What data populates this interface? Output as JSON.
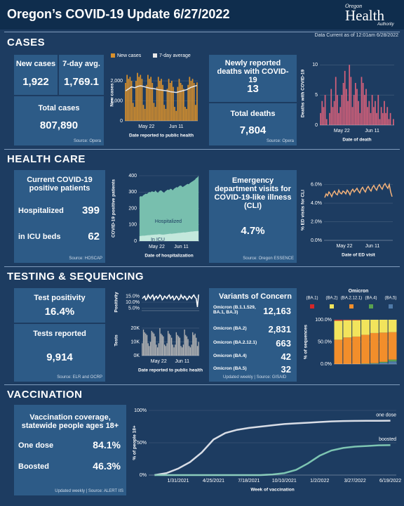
{
  "header": {
    "title": "Oregon’s COVID-19 Update 6/27/2022",
    "logo": [
      "Oregon",
      "Health",
      "Authority"
    ],
    "data_current": "Data Current as of 12:01am 6/28/2022"
  },
  "cases": {
    "title": "CASES",
    "new_cases": {
      "label": "New cases",
      "value": "1,922"
    },
    "avg": {
      "label": "7-day avg.",
      "value": "1,769.1"
    },
    "total": {
      "label": "Total cases",
      "value": "807,890"
    },
    "source": "Source: Opera",
    "deaths_new": {
      "label": "Newly reported deaths with COVID-19",
      "value": "13"
    },
    "deaths_total": {
      "label": "Total deaths",
      "value": "7,804"
    },
    "deaths_source": "Source: Opera"
  },
  "health_care": {
    "title": "HEALTH CARE",
    "patients_label": "Current COVID-19 positive patients",
    "hospitalized": {
      "label": "Hospitalized",
      "value": "399"
    },
    "icu": {
      "label": "in ICU beds",
      "value": "62"
    },
    "source": "Source: HOSCAP",
    "ed_label": "Emergency department visits for COVID-19-like illness (CLI)",
    "ed_value": "4.7%",
    "ed_source": "Source: Oregon ESSENCE"
  },
  "testing": {
    "title": "TESTING & SEQUENCING",
    "positivity": {
      "label": "Test positivity",
      "value": "16.4%"
    },
    "tests": {
      "label": "Tests reported",
      "value": "9,914"
    },
    "source": "Source: ELR and OCRP",
    "variants_title": "Variants of Concern",
    "variants": [
      [
        "Omicron (B.1.1.529, BA.1, BA.3)",
        "12,163"
      ],
      [
        "Omicron (BA.2)",
        "2,831"
      ],
      [
        "Omicron (BA.2.12.1)",
        "663"
      ],
      [
        "Omicron (BA.4)",
        "42"
      ],
      [
        "Omicron (BA.5)",
        "32"
      ]
    ],
    "variants_source": "Updated weekly | Source: GISAID"
  },
  "vaccination": {
    "title": "VACCINATION",
    "label": "Vaccination coverage, statewide people ages 18+",
    "one_dose": {
      "label": "One dose",
      "value": "84.1%"
    },
    "boosted": {
      "label": "Boosted",
      "value": "46.3%"
    },
    "source": "Updated weekly | Source: ALERT IIS"
  },
  "chart_data": [
    {
      "type": "bar",
      "ylabel": "New cases",
      "xlabel": "Date reported to public health",
      "legend": "top",
      "grid": true,
      "categories": [
        null,
        null,
        null,
        null,
        null,
        null,
        null,
        null,
        null,
        null,
        null,
        null,
        null,
        null,
        "May 22",
        null,
        null,
        null,
        null,
        null,
        null,
        null,
        null,
        null,
        null,
        null,
        null,
        null,
        null,
        null,
        null,
        null,
        null,
        null,
        "Jun 11",
        null,
        null,
        null,
        null,
        null,
        null,
        null,
        null,
        null,
        null,
        null,
        null,
        null,
        null
      ],
      "ylim": [
        0,
        2600
      ],
      "yticks": [
        0,
        {
          "value": 1000,
          "label": "1,000"
        },
        {
          "value": 2000,
          "label": "2,000"
        }
      ],
      "series": [
        {
          "name": "New cases",
          "color": "#d9902b",
          "values": [
            1900,
            2300,
            2100,
            2200,
            2000,
            900,
            700,
            2000,
            2400,
            2200,
            2300,
            2100,
            800,
            600,
            1800,
            2300,
            2100,
            2200,
            1900,
            900,
            700,
            1700,
            2200,
            2000,
            2100,
            1800,
            800,
            600,
            1600,
            2100,
            1900,
            2000,
            1700,
            700,
            500,
            1700,
            2100,
            1900,
            1800,
            1600,
            700,
            600,
            1800,
            2200,
            2000,
            2100,
            1900,
            800,
            1922
          ]
        },
        {
          "name": "7-day average",
          "type": "line",
          "color": "#e8e8e8",
          "values": [
            1500,
            1550,
            1600,
            1650,
            1700,
            1680,
            1660,
            1680,
            1720,
            1740,
            1750,
            1740,
            1720,
            1700,
            1680,
            1660,
            1640,
            1630,
            1620,
            1610,
            1600,
            1580,
            1560,
            1550,
            1540,
            1530,
            1520,
            1510,
            1500,
            1480,
            1460,
            1450,
            1440,
            1430,
            1420,
            1440,
            1460,
            1480,
            1500,
            1520,
            1540,
            1560,
            1600,
            1640,
            1680,
            1700,
            1730,
            1750,
            1769.1
          ]
        }
      ]
    },
    {
      "type": "bar",
      "ylabel": "Deaths with COVID-19",
      "xlabel": "Date of death",
      "grid": true,
      "categories": [
        null,
        null,
        null,
        null,
        null,
        null,
        null,
        null,
        null,
        null,
        null,
        null,
        null,
        null,
        "May 22",
        null,
        null,
        null,
        null,
        null,
        null,
        null,
        null,
        null,
        null,
        null,
        null,
        null,
        null,
        null,
        null,
        null,
        null,
        null,
        "Jun 11",
        null,
        null,
        null,
        null,
        null,
        null,
        null,
        null,
        null,
        null,
        null,
        null,
        null,
        null
      ],
      "ylim": [
        0,
        10.5
      ],
      "yticks": [
        0,
        5,
        10
      ],
      "series": [
        {
          "name": "Deaths",
          "color": "#d4607a",
          "values": [
            2,
            4,
            3,
            5,
            1,
            0,
            2,
            6,
            3,
            4,
            8,
            5,
            2,
            3,
            5,
            7,
            9,
            6,
            4,
            10,
            8,
            3,
            5,
            7,
            6,
            4,
            2,
            8,
            7,
            5,
            6,
            3,
            4,
            2,
            5,
            3,
            4,
            2,
            5,
            1,
            3,
            2,
            4,
            2,
            3,
            1,
            2,
            0,
            1
          ]
        }
      ]
    },
    {
      "type": "area",
      "ylabel": "COVID-19 positive patients",
      "xlabel": "Date of hospitalization",
      "grid": true,
      "annotations": [
        "Hospitalized",
        "In ICU"
      ],
      "categories": [
        null,
        null,
        null,
        null,
        null,
        null,
        null,
        null,
        null,
        null,
        null,
        null,
        null,
        null,
        "May 22",
        null,
        null,
        null,
        null,
        null,
        null,
        null,
        null,
        null,
        null,
        null,
        null,
        null,
        null,
        null,
        null,
        null,
        null,
        null,
        "Jun 11",
        null,
        null,
        null,
        null,
        null,
        null,
        null,
        null,
        null,
        null,
        null,
        null,
        null,
        null
      ],
      "ylim": [
        0,
        400
      ],
      "yticks": [
        0,
        100,
        200,
        300,
        400
      ],
      "series": [
        {
          "name": "Hospitalized",
          "color": "#78bfae",
          "values": [
            270,
            275,
            272,
            280,
            285,
            290,
            288,
            295,
            300,
            298,
            305,
            302,
            300,
            310,
            300,
            295,
            305,
            310,
            308,
            300,
            295,
            305,
            310,
            315,
            312,
            320,
            318,
            310,
            320,
            325,
            330,
            328,
            335,
            340,
            338,
            330,
            335,
            340,
            345,
            350,
            348,
            355,
            360,
            365,
            370,
            375,
            385,
            390,
            399
          ]
        },
        {
          "name": "In ICU",
          "color": "#c3e8dc",
          "values": [
            30,
            31,
            32,
            33,
            33,
            34,
            35,
            36,
            36,
            37,
            38,
            38,
            39,
            40,
            40,
            41,
            42,
            41,
            40,
            39,
            40,
            41,
            42,
            43,
            44,
            45,
            44,
            45,
            46,
            47,
            48,
            49,
            50,
            50,
            51,
            52,
            53,
            52,
            54,
            55,
            56,
            57,
            58,
            58,
            59,
            60,
            61,
            61,
            62
          ]
        }
      ]
    },
    {
      "type": "line",
      "ylabel": "% ED visits for CLI",
      "xlabel": "Date of ED visit",
      "grid": true,
      "categories": [
        null,
        null,
        null,
        null,
        null,
        null,
        null,
        null,
        null,
        null,
        null,
        null,
        null,
        null,
        "May 22",
        null,
        null,
        null,
        null,
        null,
        null,
        null,
        null,
        null,
        null,
        null,
        null,
        null,
        null,
        null,
        null,
        null,
        null,
        null,
        "Jun 11",
        null,
        null,
        null,
        null,
        null,
        null,
        null,
        null,
        null,
        null,
        null,
        null,
        null,
        null
      ],
      "ylim": [
        0,
        6.5
      ],
      "yticks": [
        {
          "value": 0,
          "label": "0.0%"
        },
        {
          "value": 2,
          "label": "2.0%"
        },
        {
          "value": 4,
          "label": "4.0%"
        },
        {
          "value": 6,
          "label": "6.0%"
        }
      ],
      "series": [
        {
          "name": "ED visits",
          "color": "#f4b27a",
          "values": [
            4.6,
            5.0,
            4.8,
            5.2,
            5.0,
            4.7,
            5.1,
            5.3,
            5.0,
            4.9,
            5.4,
            5.1,
            5.0,
            5.3,
            5.2,
            5.0,
            5.4,
            5.2,
            4.9,
            5.3,
            5.5,
            5.2,
            5.4,
            5.6,
            5.3,
            5.1,
            5.5,
            5.7,
            5.4,
            5.2,
            5.6,
            5.8,
            5.5,
            5.3,
            5.7,
            5.9,
            5.6,
            5.4,
            5.8,
            6.0,
            5.7,
            5.5,
            5.9,
            6.1,
            5.8,
            5.6,
            6.0,
            5.2,
            4.7
          ]
        }
      ]
    },
    {
      "type": "line",
      "ylabel": "Positivity",
      "grid": true,
      "categories": [
        null,
        null,
        null,
        null,
        null,
        null,
        null,
        null,
        null,
        null,
        null,
        null,
        null,
        null,
        null,
        null,
        null,
        null,
        null,
        null,
        null,
        null,
        null,
        null,
        null,
        null,
        null,
        null,
        null,
        null,
        null,
        null,
        null,
        null,
        null,
        null,
        null,
        null,
        null,
        null,
        null,
        null,
        null,
        null,
        null,
        null,
        null,
        null,
        null
      ],
      "ylim": [
        3,
        17
      ],
      "yticks": [
        {
          "value": 5,
          "label": "5.0%"
        },
        {
          "value": 10,
          "label": "10.0%"
        },
        {
          "value": 15,
          "label": "15.0%"
        }
      ],
      "series": [
        {
          "name": "Positivity",
          "color": "#ffffff",
          "values": [
            13,
            14,
            15,
            12,
            13,
            16,
            14,
            13,
            15,
            16,
            12,
            14,
            15,
            13,
            14,
            16,
            15,
            12,
            13,
            15,
            14,
            13,
            15,
            16,
            13,
            14,
            15,
            12,
            13,
            15,
            14,
            12,
            13,
            16,
            14,
            13,
            15,
            14,
            12,
            13,
            15,
            14,
            13,
            15,
            16,
            14,
            13,
            6,
            16.4
          ]
        }
      ]
    },
    {
      "type": "bar",
      "ylabel": "Tests",
      "xlabel": "Date reported to public health",
      "grid": true,
      "categories": [
        null,
        null,
        null,
        null,
        null,
        null,
        null,
        null,
        null,
        null,
        null,
        null,
        null,
        null,
        "May 22",
        null,
        null,
        null,
        null,
        null,
        null,
        null,
        null,
        null,
        null,
        null,
        null,
        null,
        null,
        null,
        null,
        null,
        null,
        null,
        "Jun 11",
        null,
        null,
        null,
        null,
        null,
        null,
        null,
        null,
        null,
        null,
        null,
        null,
        null,
        null
      ],
      "ylim": [
        0,
        22000
      ],
      "yticks": [
        {
          "value": 0,
          "label": "0K"
        },
        {
          "value": 10000,
          "label": "10K"
        },
        {
          "value": 20000,
          "label": "20K"
        }
      ],
      "series": [
        {
          "name": "Tests",
          "color": "#b5b5b5",
          "values": [
            9000,
            19000,
            17000,
            16000,
            15000,
            9000,
            7000,
            10000,
            18000,
            17000,
            16000,
            14000,
            8000,
            6000,
            9000,
            20000,
            16000,
            15000,
            14000,
            8000,
            7000,
            9000,
            18000,
            16000,
            15000,
            13000,
            8000,
            6000,
            8000,
            17000,
            15000,
            14000,
            13000,
            7000,
            6000,
            8000,
            19000,
            15000,
            14000,
            12000,
            7000,
            6000,
            8000,
            17000,
            15000,
            16000,
            13000,
            7000,
            9914
          ]
        }
      ]
    },
    {
      "type": "stacked_bar",
      "title": "Omicron",
      "ylabel": "% of sequences",
      "legend": "top",
      "grid": true,
      "categories": [
        null,
        null,
        null,
        null,
        null,
        null,
        null
      ],
      "ylim": [
        0,
        100
      ],
      "yticks": [
        {
          "value": 0,
          "label": "0.0%"
        },
        {
          "value": 50,
          "label": "50.0%"
        },
        {
          "value": 100,
          "label": "100.0%"
        }
      ],
      "series": [
        {
          "name": "(BA.1)",
          "color": "#d62728",
          "values": [
            2,
            1,
            1,
            0,
            0,
            0,
            0
          ]
        },
        {
          "name": "(BA.2)",
          "color": "#f2e45c",
          "values": [
            43,
            39,
            37,
            34,
            30,
            29,
            28
          ]
        },
        {
          "name": "(BA.2.12.1)",
          "color": "#f28e2b",
          "values": [
            55,
            60,
            62,
            65,
            68,
            66,
            62
          ]
        },
        {
          "name": "(BA.4)",
          "color": "#59a14f",
          "values": [
            0,
            0,
            0,
            1,
            1,
            2,
            4
          ]
        },
        {
          "name": "(BA.5)",
          "color": "#4e79a7",
          "values": [
            0,
            0,
            0,
            0,
            1,
            3,
            6
          ]
        }
      ]
    },
    {
      "type": "line",
      "ylabel": "% of people 18+",
      "xlabel": "Week of vaccination",
      "grid": true,
      "series_labels": true,
      "categories": [
        null,
        null,
        "1/31/2021",
        null,
        null,
        "4/25/2021",
        null,
        null,
        "7/18/2021",
        null,
        null,
        "10/10/2021",
        null,
        null,
        "1/2/2022",
        null,
        null,
        "3/27/2022",
        null,
        null,
        "6/19/2022"
      ],
      "ylim": [
        0,
        100
      ],
      "yticks": [
        {
          "value": 0,
          "label": "0%"
        },
        {
          "value": 50,
          "label": "50%"
        },
        {
          "value": 100,
          "label": "100%"
        }
      ],
      "series": [
        {
          "name": "one dose",
          "color": "#d8dde6",
          "values": [
            0,
            3,
            10,
            20,
            35,
            55,
            65,
            70,
            73,
            75,
            77,
            79,
            80,
            81,
            82,
            83,
            83.5,
            83.8,
            84,
            84,
            84.1
          ]
        },
        {
          "name": "boosted",
          "color": "#7dc5b2",
          "values": [
            0,
            0,
            0,
            0,
            0,
            0,
            0,
            0,
            0,
            0,
            1,
            3,
            8,
            18,
            30,
            38,
            42,
            44,
            45,
            46,
            46.3
          ]
        }
      ]
    }
  ]
}
